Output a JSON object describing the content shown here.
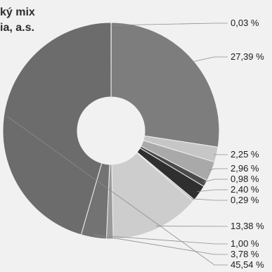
{
  "title": "ký mix\nia, a.s.",
  "chart_data": {
    "type": "pie",
    "donut": true,
    "title": "ký mix ia, a.s.",
    "labels": [
      "0,03 %",
      "27,39 %",
      "2,25 %",
      "2,96 %",
      "0,98 %",
      "2,40 %",
      "0,29 %",
      "13,38 %",
      "1,00 %",
      "3,78 %",
      "45,54 %"
    ],
    "values": [
      0.03,
      27.39,
      2.25,
      2.96,
      0.98,
      2.4,
      0.29,
      13.38,
      1.0,
      3.78,
      45.54
    ],
    "colors": [
      "#8a8a8a",
      "#7d7d7d",
      "#c6c6c6",
      "#a9a9a9",
      "#4b4b4b",
      "#2f2f2f",
      "#bcbcbc",
      "#cdcdcd",
      "#9b9b9b",
      "#737373",
      "#6c6c6c"
    ]
  }
}
